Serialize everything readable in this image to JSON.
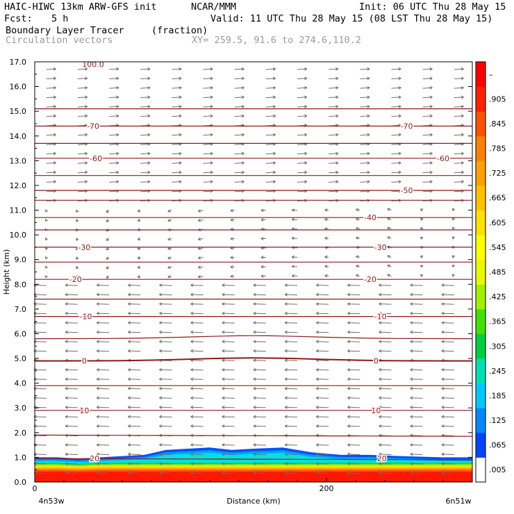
{
  "header": {
    "model": "HAIC-HIWC 13km ARW-GFS init",
    "org": "NCAR/MMM",
    "init": "Init: 06 UTC Thu 28 May 15",
    "fcst_label": "Fcst:",
    "fcst_value": "5 h",
    "valid": "Valid: 11 UTC Thu 28 May 15 (08 LST Thu 28 May 15)",
    "field_name": "Boundary Layer Tracer",
    "field_units": "(fraction)",
    "vectors_label": "Circulation vectors",
    "xy_label": "XY= 259.5, 91.6 to 274.6,110.2"
  },
  "chart_data": {
    "type": "heatmap",
    "xlabel": "Distance (km)",
    "ylabel": "Height (km)",
    "xlim": [
      0,
      300
    ],
    "ylim": [
      0,
      17
    ],
    "x_ticks": [
      0,
      200
    ],
    "x_tick_labels": [
      "0",
      "200"
    ],
    "x_end_labels": {
      "left": "4n53w",
      "right": "6n51w"
    },
    "y_ticks": [
      0,
      1,
      2,
      3,
      4,
      5,
      6,
      7,
      8,
      9,
      10,
      11,
      12,
      13,
      14,
      15,
      16,
      17
    ],
    "y_tick_labels": [
      "0.0",
      "1.0",
      "2.0",
      "3.0",
      "4.0",
      "5.0",
      "6.0",
      "7.0",
      "8.0",
      "9.0",
      "10.0",
      "11.0",
      "12.0",
      "13.0",
      "14.0",
      "15.0",
      "16.0",
      "17.0"
    ],
    "colorbar": {
      "labels": [
        ".005",
        ".065",
        ".125",
        ".185",
        ".245",
        ".305",
        ".365",
        ".425",
        ".485",
        ".545",
        ".605",
        ".665",
        ".725",
        ".785",
        ".845",
        ".905",
        "–"
      ],
      "colors": [
        "#ffffff",
        "#0044ff",
        "#0088ff",
        "#00c8ff",
        "#00e0b0",
        "#00d040",
        "#40e000",
        "#a0f000",
        "#e8f800",
        "#ffff00",
        "#ffe000",
        "#ffc000",
        "#ffa000",
        "#ff8000",
        "#ff5000",
        "#ff2000",
        "#ff0000"
      ]
    },
    "temperature_contours": {
      "color": "#8b1a1a",
      "labels": [
        {
          "text": "100.0",
          "x": 40,
          "y": 16.9
        },
        {
          "text": "-70",
          "x": 40,
          "y": 14.4
        },
        {
          "text": "-70",
          "x": 255,
          "y": 14.4
        },
        {
          "text": "-60",
          "x": 42,
          "y": 13.1
        },
        {
          "text": "-60",
          "x": 280,
          "y": 13.1
        },
        {
          "text": "-50",
          "x": 255,
          "y": 11.8
        },
        {
          "text": "-40",
          "x": 230,
          "y": 10.7
        },
        {
          "text": "-30",
          "x": 34,
          "y": 9.5
        },
        {
          "text": "-30",
          "x": 237,
          "y": 9.5
        },
        {
          "text": "-20",
          "x": 28,
          "y": 8.2
        },
        {
          "text": "-20",
          "x": 230,
          "y": 8.2
        },
        {
          "text": "-10",
          "x": 35,
          "y": 6.7
        },
        {
          "text": "-10",
          "x": 237,
          "y": 6.7
        },
        {
          "text": "0",
          "x": 34,
          "y": 4.9
        },
        {
          "text": "0",
          "x": 234,
          "y": 4.9
        },
        {
          "text": "10",
          "x": 34,
          "y": 2.9
        },
        {
          "text": "10",
          "x": 234,
          "y": 2.9
        },
        {
          "text": "20",
          "x": 41,
          "y": 0.95
        },
        {
          "text": "20",
          "x": 238,
          "y": 0.95
        }
      ],
      "levels_km": [
        0.95,
        1.9,
        2.9,
        3.9,
        4.9,
        5.8,
        6.7,
        7.4,
        8.2,
        8.9,
        9.5,
        10.2,
        10.7,
        11.4,
        11.8,
        12.4,
        13.1,
        13.7,
        14.4,
        15.1
      ]
    },
    "tracer_layer": {
      "top_km": [
        1.0,
        1.0,
        0.95,
        1.0,
        1.05,
        1.1,
        1.3,
        1.35,
        1.4,
        1.3,
        1.35,
        1.4,
        1.2,
        1.1,
        1.1,
        1.05,
        1.0,
        1.0
      ],
      "x_km": [
        0,
        15,
        30,
        45,
        60,
        75,
        90,
        105,
        120,
        135,
        150,
        170,
        190,
        210,
        230,
        250,
        280,
        300
      ]
    }
  }
}
